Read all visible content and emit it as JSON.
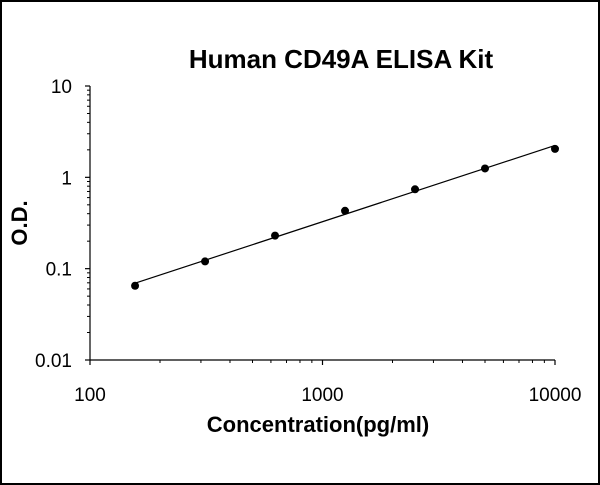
{
  "chart_data": {
    "type": "scatter",
    "title": "Human CD49A ELISA Kit",
    "xlabel": "Concentration(pg/ml)",
    "ylabel": "O.D.",
    "x_scale": "log",
    "y_scale": "log",
    "xlim": [
      100,
      10000
    ],
    "ylim": [
      0.01,
      10
    ],
    "x_ticks": [
      "100",
      "1000",
      "10000"
    ],
    "y_ticks": [
      "10",
      "1",
      "0.1",
      "0.01"
    ],
    "grid": false,
    "legend": false,
    "trendline": true,
    "series": [
      {
        "x": [
          156.25,
          312.5,
          625,
          1250,
          2500,
          5000,
          10000
        ],
        "y": [
          0.065,
          0.12,
          0.23,
          0.43,
          0.74,
          1.25,
          2.05
        ]
      }
    ],
    "colors": {
      "marker": "#000000",
      "line": "#000000",
      "axis": "#000000"
    }
  }
}
